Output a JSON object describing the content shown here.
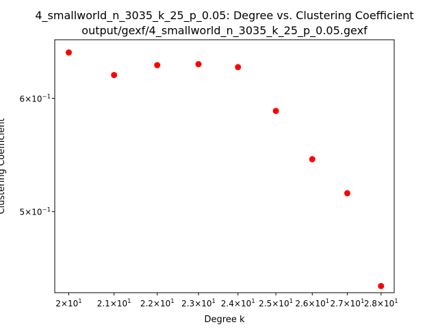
{
  "chart_data": {
    "type": "scatter",
    "title": "4_smallworld_n_3035_k_25_p_0.05: Degree vs. Clustering Coefficient",
    "subtitle": "output/gexf/4_smallworld_n_3035_k_25_p_0.05.gexf",
    "xlabel": "Degree k",
    "ylabel": "Clustering Coefficient",
    "x_scale": "log",
    "y_scale": "log",
    "xlim": [
      19.7,
      28.4
    ],
    "ylim": [
      0.4388,
      0.6594
    ],
    "x_ticks": [
      {
        "value": 20,
        "mantissa": "2",
        "exponent": "1"
      },
      {
        "value": 21,
        "mantissa": "2.1",
        "exponent": "1"
      },
      {
        "value": 22,
        "mantissa": "2.2",
        "exponent": "1"
      },
      {
        "value": 23,
        "mantissa": "2.3",
        "exponent": "1"
      },
      {
        "value": 24,
        "mantissa": "2.4",
        "exponent": "1"
      },
      {
        "value": 25,
        "mantissa": "2.5",
        "exponent": "1"
      },
      {
        "value": 26,
        "mantissa": "2.6",
        "exponent": "1"
      },
      {
        "value": 27,
        "mantissa": "2.7",
        "exponent": "1"
      },
      {
        "value": 28,
        "mantissa": "2.8",
        "exponent": "1"
      }
    ],
    "y_ticks": [
      {
        "value": 0.6,
        "mantissa": "6",
        "exponent": "−1"
      },
      {
        "value": 0.5,
        "mantissa": "5",
        "exponent": "−1"
      }
    ],
    "grid": false,
    "marker_color": "#ff0000",
    "points": [
      {
        "x": 20,
        "y": 0.646
      },
      {
        "x": 21,
        "y": 0.623
      },
      {
        "x": 22,
        "y": 0.633
      },
      {
        "x": 23,
        "y": 0.634
      },
      {
        "x": 24,
        "y": 0.631
      },
      {
        "x": 25,
        "y": 0.588
      },
      {
        "x": 26,
        "y": 0.544
      },
      {
        "x": 27,
        "y": 0.515
      },
      {
        "x": 28,
        "y": 0.4435
      }
    ]
  }
}
